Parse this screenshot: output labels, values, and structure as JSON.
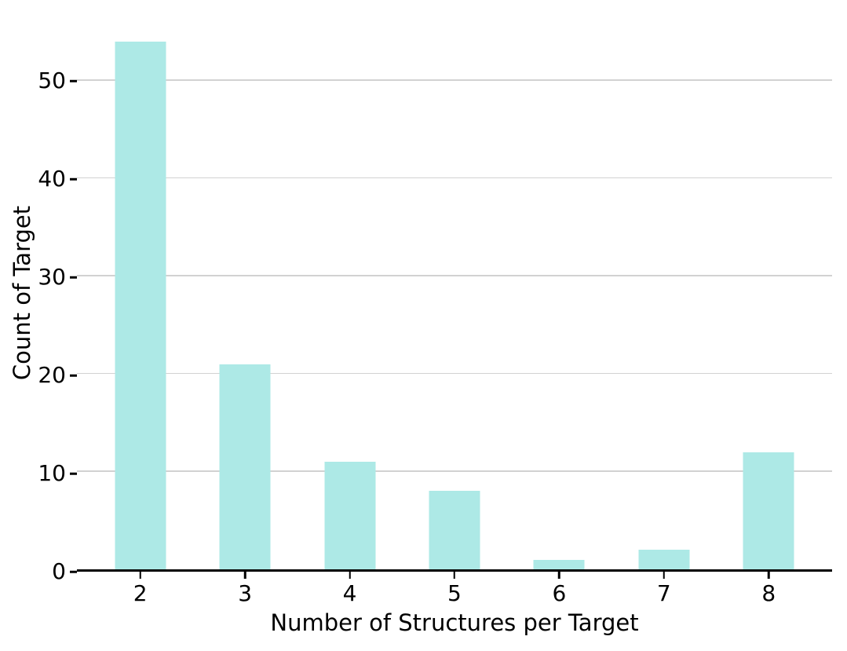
{
  "chart_data": {
    "type": "bar",
    "categories": [
      "2",
      "3",
      "4",
      "5",
      "6",
      "7",
      "8"
    ],
    "values": [
      54,
      21,
      11,
      8,
      1,
      2,
      12
    ],
    "title": "",
    "xlabel": "Number of Structures per Target",
    "ylabel": "Count of Target",
    "yticks": [
      0,
      10,
      20,
      30,
      40,
      50
    ],
    "ylim": [
      0,
      56.8
    ],
    "grid": "horizontal",
    "legend": "none",
    "bar_color": "#ADE9E6",
    "grid_color": "#D2D2D2",
    "axis_color": "#000000",
    "text_color": "#000000",
    "background": "#FFFFFF"
  }
}
